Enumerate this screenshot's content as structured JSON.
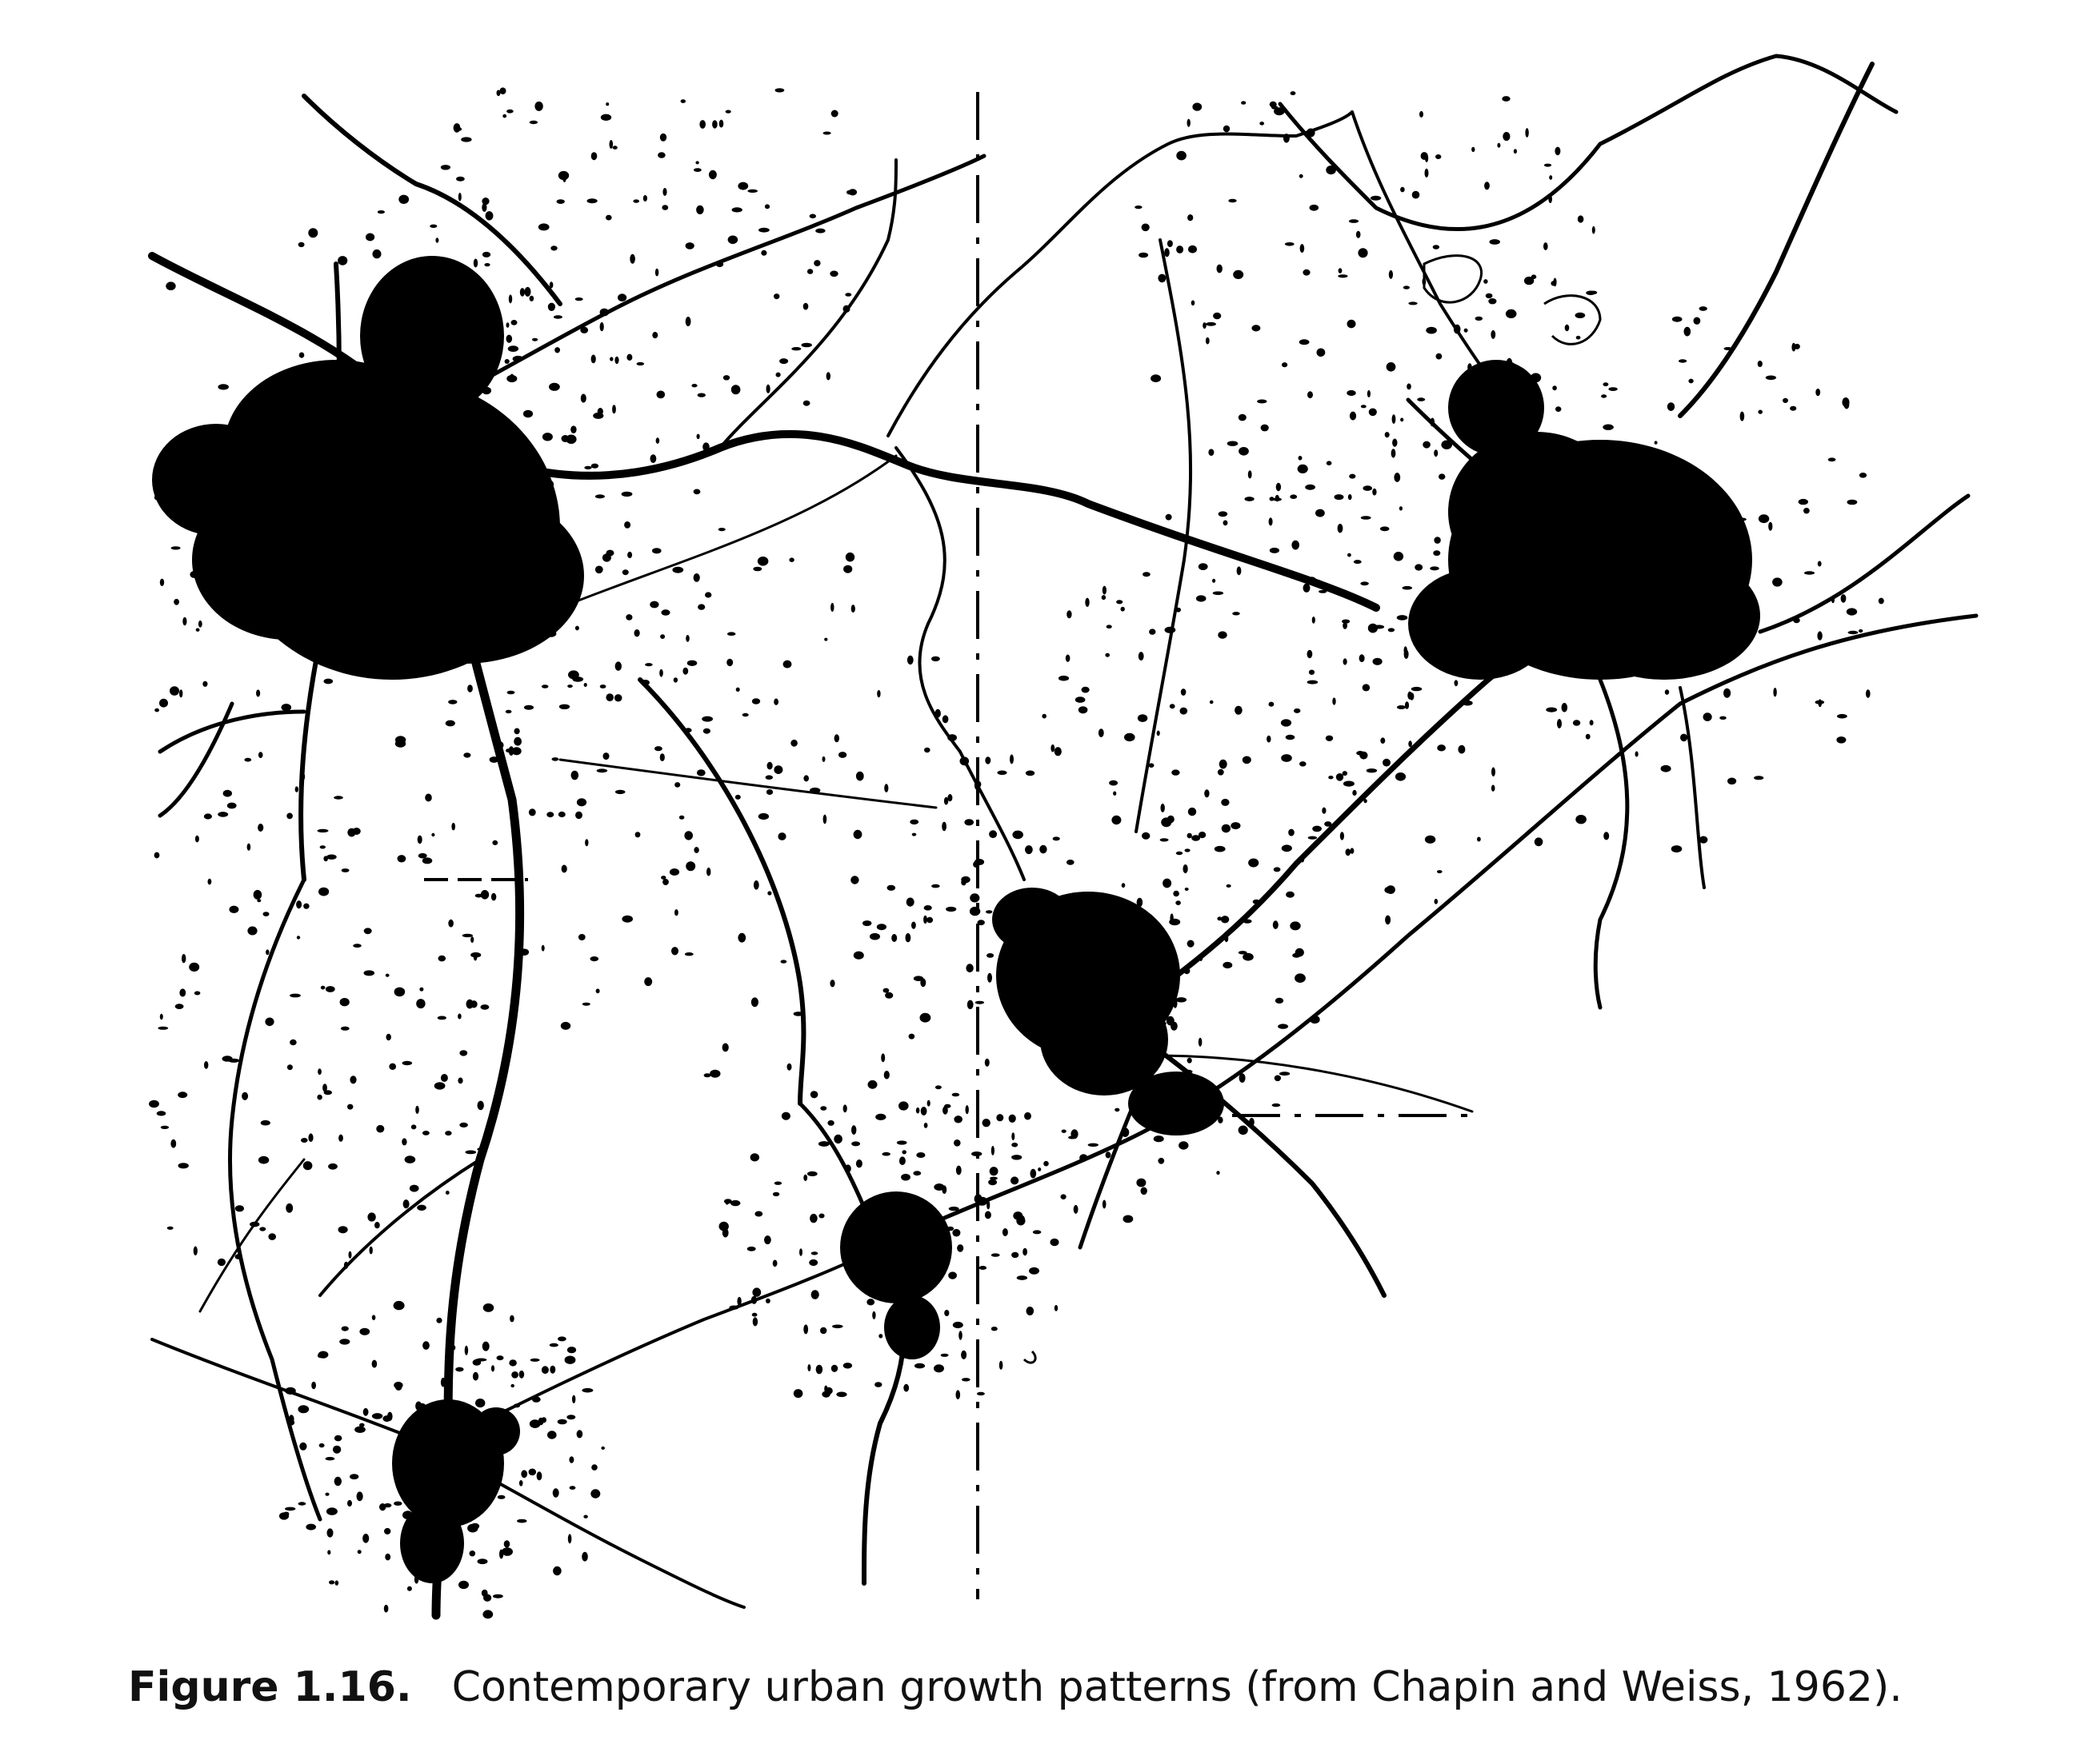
{
  "figure": {
    "label": "Figure 1.16.",
    "caption": "Contemporary urban growth patterns (from Chapin and Weiss, 1962)."
  },
  "map": {
    "ink_color": "#000000",
    "background_color": "#ffffff",
    "icon": "urban-growth-map"
  }
}
